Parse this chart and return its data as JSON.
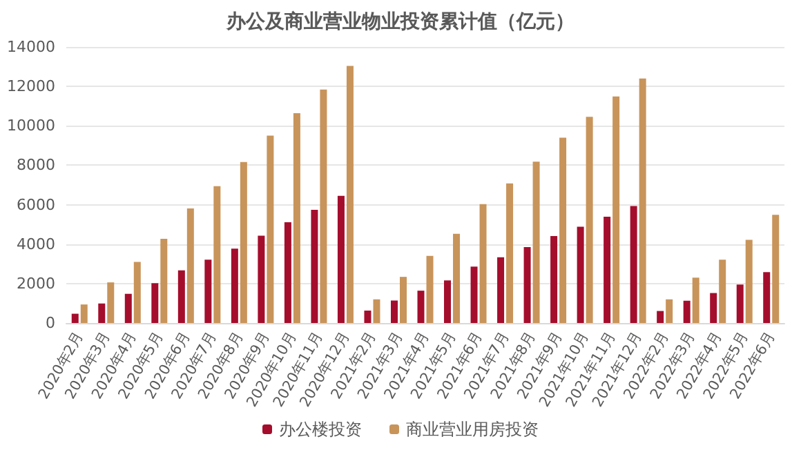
{
  "chart_data": {
    "type": "bar",
    "title": "办公及商业营业物业投资累计值（亿元）",
    "categories": [
      "2020年2月",
      "2020年3月",
      "2020年4月",
      "2020年5月",
      "2020年6月",
      "2020年7月",
      "2020年8月",
      "2020年9月",
      "2020年10月",
      "2020年11月",
      "2020年12月",
      "2021年2月",
      "2021年3月",
      "2021年4月",
      "2021年5月",
      "2021年6月",
      "2021年7月",
      "2021年8月",
      "2021年9月",
      "2021年10月",
      "2021年11月",
      "2021年12月",
      "2022年2月",
      "2022年3月",
      "2022年4月",
      "2022年5月",
      "2022年6月"
    ],
    "series": [
      {
        "name": "办公楼投资",
        "color": "#a50d2c",
        "values": [
          470,
          990,
          1480,
          2020,
          2670,
          3210,
          3770,
          4430,
          5110,
          5740,
          6450,
          630,
          1140,
          1640,
          2160,
          2860,
          3330,
          3850,
          4410,
          4880,
          5390,
          5930,
          610,
          1130,
          1520,
          1950,
          2580
        ]
      },
      {
        "name": "商业营业用房投资",
        "color": "#c8945a",
        "values": [
          940,
          2060,
          3100,
          4270,
          5810,
          6940,
          8160,
          9500,
          10640,
          11840,
          13040,
          1200,
          2340,
          3400,
          4520,
          6030,
          7080,
          8180,
          9400,
          10460,
          11490,
          12400,
          1200,
          2300,
          3210,
          4220,
          5490
        ]
      }
    ],
    "ylim": [
      0,
      14000
    ],
    "yticks": [
      0,
      2000,
      4000,
      6000,
      8000,
      10000,
      12000,
      14000
    ],
    "grid": "y",
    "legend": "bottom"
  }
}
